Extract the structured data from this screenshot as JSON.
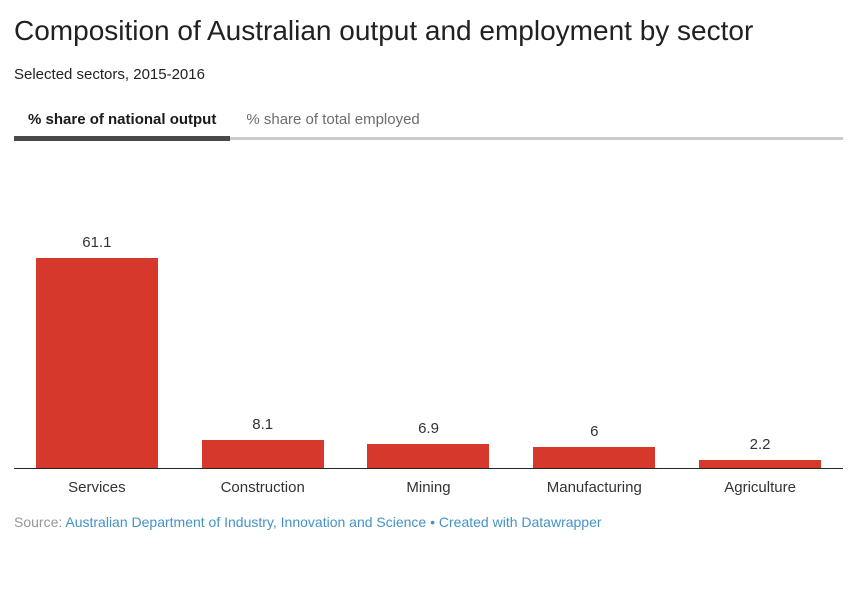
{
  "header": {
    "title": "Composition of Australian output and employment by sector",
    "subtitle": "Selected sectors, 2015-2016"
  },
  "tabs": [
    {
      "label": "% share of national output",
      "active": true
    },
    {
      "label": "% share of total employed",
      "active": false
    }
  ],
  "chart_data": {
    "type": "bar",
    "title": "Composition of Australian output and employment by sector",
    "subtitle": "Selected sectors, 2015-2016",
    "active_series": "% share of national output",
    "categories": [
      "Services",
      "Construction",
      "Mining",
      "Manufacturing",
      "Agriculture"
    ],
    "values": [
      61.1,
      8.1,
      6.9,
      6,
      2.2
    ],
    "xlabel": "",
    "ylabel": "",
    "ylim": [
      0,
      61.1
    ],
    "grid": false,
    "legend": false,
    "value_labels": true,
    "bar_color": "#d6392c"
  },
  "colors": {
    "bar": "#d6392c",
    "active_tab_underline": "#4a4a4a",
    "tab_baseline": "#cccccc",
    "link": "#4493c6"
  },
  "footer": {
    "source_label": "Source:",
    "source_link": "Australian Department of Industry, Innovation and Science",
    "separator": "•",
    "credit_link": "Created with Datawrapper"
  }
}
